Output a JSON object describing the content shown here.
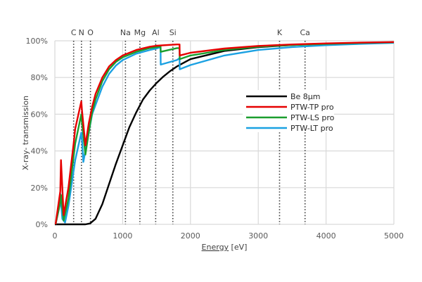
{
  "chart_data": {
    "type": "line",
    "title": "",
    "xlabel": "Energy [eV]",
    "ylabel": "X-ray- transmission",
    "xlim": [
      0,
      5000
    ],
    "ylim": [
      0,
      100
    ],
    "xticks": [
      0,
      1000,
      2000,
      3000,
      4000,
      5000
    ],
    "xtick_labels": [
      "0",
      "1000",
      "2000",
      "3000",
      "4000",
      "5000"
    ],
    "yticks": [
      0,
      20,
      40,
      60,
      80,
      100
    ],
    "ytick_labels": [
      "0%",
      "20%",
      "40%",
      "60%",
      "80%",
      "100%"
    ],
    "grid": true,
    "legend_position": "center-right",
    "element_edges": [
      {
        "label": "C",
        "energy": 277
      },
      {
        "label": "N",
        "energy": 392
      },
      {
        "label": "O",
        "energy": 525
      },
      {
        "label": "Na",
        "energy": 1041
      },
      {
        "label": "Mg",
        "energy": 1254
      },
      {
        "label": "Al",
        "energy": 1487
      },
      {
        "label": "Si",
        "energy": 1740
      },
      {
        "label": "K",
        "energy": 3314
      },
      {
        "label": "Ca",
        "energy": 3690
      }
    ],
    "series": [
      {
        "name": "Be 8µm",
        "color": "#000000",
        "x": [
          0,
          300,
          450,
          520,
          600,
          700,
          800,
          900,
          1000,
          1100,
          1200,
          1300,
          1400,
          1500,
          1600,
          1700,
          1800,
          2000,
          2500,
          3000,
          3500,
          4000,
          4500,
          5000
        ],
        "y": [
          0,
          0,
          0,
          0.5,
          3,
          11,
          22,
          33,
          43,
          53,
          61,
          68,
          73,
          77,
          80.5,
          83.5,
          86,
          90,
          94.5,
          96.5,
          97.7,
          98.4,
          98.9,
          99.2
        ]
      },
      {
        "name": "PTW-TP pro",
        "color": "#e60000",
        "x": [
          10,
          80,
          90,
          130,
          200,
          280,
          300,
          390,
          400,
          450,
          500,
          550,
          600,
          700,
          800,
          900,
          1000,
          1200,
          1400,
          1500,
          1800,
          1839,
          1841,
          2000,
          2500,
          3000,
          3500,
          4000,
          4500,
          5000
        ],
        "y": [
          0,
          18,
          35,
          5,
          20,
          45,
          52,
          67,
          62,
          43,
          55,
          64,
          71,
          80,
          86,
          89.5,
          92,
          95,
          96.8,
          97.3,
          98,
          98,
          92,
          93.5,
          95.8,
          97.2,
          98,
          98.6,
          99,
          99.3
        ]
      },
      {
        "name": "PTW-LS pro",
        "color": "#1a9e2e",
        "x": [
          10,
          80,
          90,
          130,
          200,
          280,
          300,
          390,
          400,
          450,
          500,
          550,
          600,
          700,
          800,
          900,
          1000,
          1200,
          1400,
          1500,
          1559,
          1561,
          1800,
          1839,
          1841,
          2000,
          2500,
          3000,
          3500,
          4000,
          4500,
          5000
        ],
        "y": [
          0,
          12,
          16,
          2,
          14,
          38,
          44,
          60,
          55,
          38,
          50,
          61,
          68,
          78,
          84.5,
          88.5,
          91,
          94,
          96,
          96.5,
          97,
          94,
          96,
          96,
          90,
          92,
          95,
          96.8,
          97.7,
          98.3,
          98.8,
          99.2
        ]
      },
      {
        "name": "PTW-LT pro",
        "color": "#1ba1e2",
        "x": [
          10,
          70,
          80,
          110,
          150,
          200,
          280,
          300,
          390,
          400,
          420,
          450,
          500,
          550,
          600,
          700,
          800,
          900,
          1000,
          1200,
          1400,
          1500,
          1559,
          1561,
          1800,
          1839,
          1841,
          2000,
          2500,
          3000,
          3500,
          4000,
          4500,
          5000
        ],
        "y": [
          0,
          10,
          17,
          3,
          1,
          10,
          30,
          35,
          50,
          46,
          34,
          40,
          50,
          60,
          65,
          75,
          82,
          86.5,
          89.5,
          93,
          95,
          95.8,
          96.5,
          87,
          89.5,
          90.5,
          84.5,
          86.8,
          92,
          95,
          96.6,
          97.6,
          98.3,
          98.9
        ]
      }
    ]
  }
}
